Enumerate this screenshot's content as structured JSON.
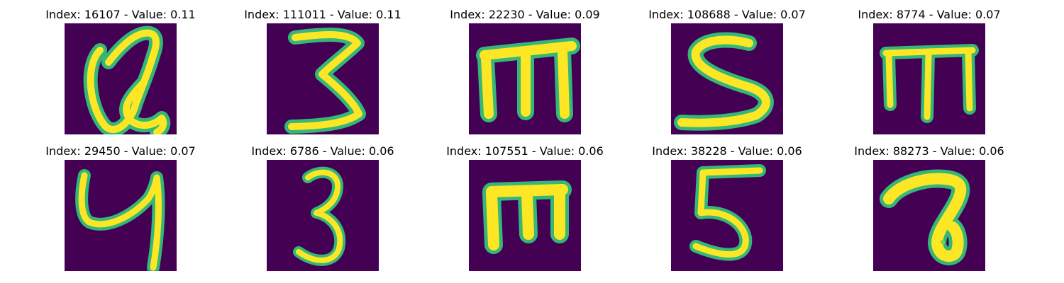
{
  "colors": {
    "background": "#440154",
    "mid": "#21918c",
    "teal": "#35b779",
    "highlight": "#fde725"
  },
  "panels": [
    {
      "title": "Index: 16107 - Value: 0.11",
      "glyph": "Q"
    },
    {
      "title": "Index: 111011 - Value: 0.11",
      "glyph": "3"
    },
    {
      "title": "Index: 22230 - Value: 0.09",
      "glyph": "m"
    },
    {
      "title": "Index: 108688 - Value: 0.07",
      "glyph": "S"
    },
    {
      "title": "Index: 8774 - Value: 0.07",
      "glyph": "m"
    },
    {
      "title": "Index: 29450 - Value: 0.07",
      "glyph": "y"
    },
    {
      "title": "Index: 6786 - Value: 0.06",
      "glyph": "3"
    },
    {
      "title": "Index: 107551 - Value: 0.06",
      "glyph": "m"
    },
    {
      "title": "Index: 38228 - Value: 0.06",
      "glyph": "5"
    },
    {
      "title": "Index: 88273 - Value: 0.06",
      "glyph": "a"
    }
  ]
}
